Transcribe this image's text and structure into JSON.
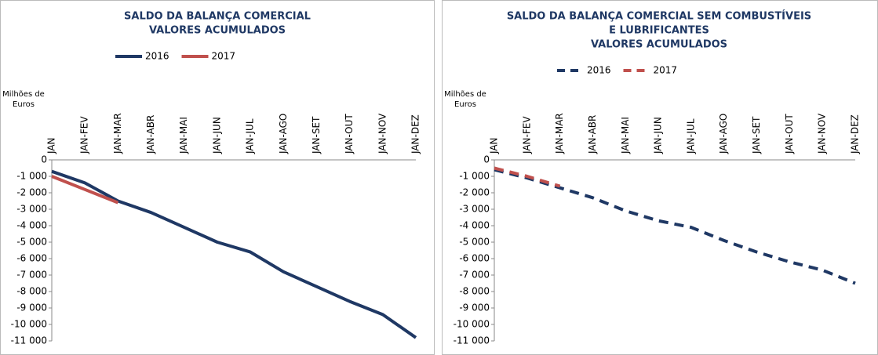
{
  "chart_data": [
    {
      "type": "line",
      "title": [
        "SALDO DA BALANÇA COMERCIAL",
        "VALORES ACUMULADOS"
      ],
      "y_label": "Milhões de Euros",
      "categories": [
        "JAN",
        "JAN-FEV",
        "JAN-MAR",
        "JAN-ABR",
        "JAN-MAI",
        "JAN-JUN",
        "JAN-JUL",
        "JAN-AGO",
        "JAN-SET",
        "JAN-OUT",
        "JAN-NOV",
        "JAN-DEZ"
      ],
      "series": [
        {
          "name": "2016",
          "color": "#1f3864",
          "line_style": "solid",
          "values": [
            -700,
            -1400,
            -2500,
            -3200,
            -4100,
            -5000,
            -5600,
            -6800,
            -7700,
            -8600,
            -9400,
            -10800
          ]
        },
        {
          "name": "2017",
          "color": "#c0504d",
          "line_style": "solid",
          "values": [
            -1000,
            -1800,
            -2600,
            null,
            null,
            null,
            null,
            null,
            null,
            null,
            null,
            null
          ]
        }
      ],
      "ylim": [
        -11000,
        0
      ],
      "yticks": [
        0,
        {
          "value": -1000,
          "label": "-1 000"
        },
        {
          "value": -2000,
          "label": "-2 000"
        },
        {
          "value": -3000,
          "label": "-3 000"
        },
        {
          "value": -4000,
          "label": "-4 000"
        },
        {
          "value": -5000,
          "label": "-5 000"
        },
        {
          "value": -6000,
          "label": "-6 000"
        },
        {
          "value": -7000,
          "label": "-7 000"
        },
        {
          "value": -8000,
          "label": "-8 000"
        },
        {
          "value": -9000,
          "label": "-9 000"
        },
        {
          "value": -10000,
          "label": "-10 000"
        },
        {
          "value": -11000,
          "label": "-11 000"
        }
      ]
    },
    {
      "type": "line",
      "title": [
        "SALDO DA BALANÇA COMERCIAL SEM COMBUSTÍVEIS",
        "E LUBRIFICANTES",
        "VALORES ACUMULADOS"
      ],
      "y_label": "Milhões de Euros",
      "categories": [
        "JAN",
        "JAN-FEV",
        "JAN-MAR",
        "JAN-ABR",
        "JAN-MAI",
        "JAN-JUN",
        "JAN-JUL",
        "JAN-AGO",
        "JAN-SET",
        "JAN-OUT",
        "JAN-NOV",
        "JAN-DEZ"
      ],
      "series": [
        {
          "name": "2016",
          "color": "#1f3864",
          "line_style": "dashed",
          "values": [
            -600,
            -1100,
            -1700,
            -2300,
            -3100,
            -3700,
            -4100,
            -4900,
            -5600,
            -6200,
            -6700,
            -7500
          ]
        },
        {
          "name": "2017",
          "color": "#c0504d",
          "line_style": "dashed",
          "values": [
            -500,
            -1000,
            -1600,
            null,
            null,
            null,
            null,
            null,
            null,
            null,
            null,
            null
          ]
        }
      ],
      "ylim": [
        -11000,
        0
      ],
      "yticks": [
        0,
        {
          "value": -1000,
          "label": "-1 000"
        },
        {
          "value": -2000,
          "label": "-2 000"
        },
        {
          "value": -3000,
          "label": "-3 000"
        },
        {
          "value": -4000,
          "label": "-4 000"
        },
        {
          "value": -5000,
          "label": "-5 000"
        },
        {
          "value": -6000,
          "label": "-6 000"
        },
        {
          "value": -7000,
          "label": "-7 000"
        },
        {
          "value": -8000,
          "label": "-8 000"
        },
        {
          "value": -9000,
          "label": "-9 000"
        },
        {
          "value": -10000,
          "label": "-10 000"
        },
        {
          "value": -11000,
          "label": "-11 000"
        }
      ]
    }
  ]
}
